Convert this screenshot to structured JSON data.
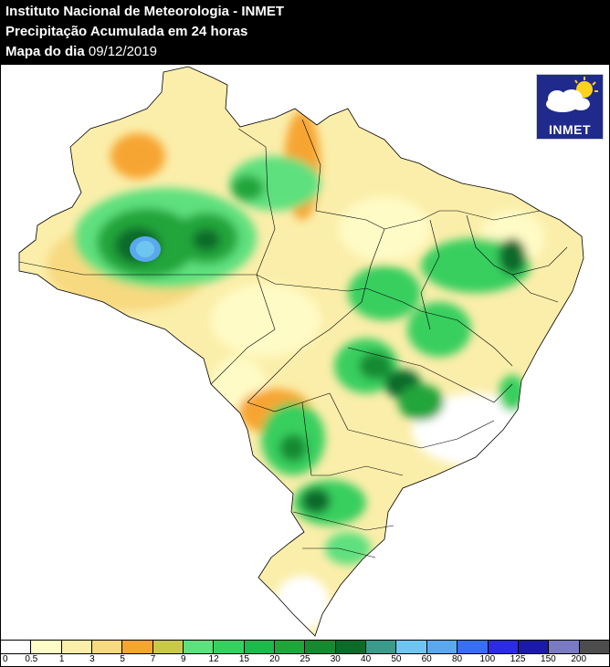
{
  "header": {
    "line1": "Instituto Nacional de Meteorologia - INMET",
    "line2": "Precipitação Acumulada em 24 horas",
    "line3_label": "Mapa do dia",
    "line3_date": "09/12/2019"
  },
  "logo": {
    "text": "INMET",
    "icon": "cloud-sun-logo-icon"
  },
  "map": {
    "icon": "brazil-precipitation-map"
  },
  "legend": {
    "labels": [
      "0",
      "0.5",
      "1",
      "3",
      "5",
      "7",
      "9",
      "12",
      "15",
      "20",
      "25",
      "30",
      "40",
      "50",
      "60",
      "80",
      "100",
      "125",
      "150",
      "200"
    ],
    "colors": [
      "#ffffff",
      "#fffbc6",
      "#fbeeaa",
      "#f7d980",
      "#f7a531",
      "#c8c94a",
      "#5ee07e",
      "#37cf5f",
      "#1fb84b",
      "#20a53a",
      "#178a30",
      "#0d6b2a",
      "#3a9b8a",
      "#6ec6f0",
      "#5aa9ef",
      "#3a6ef0",
      "#2b2be0",
      "#1a1aa6",
      "#7a7ac2",
      "#4d4d4d"
    ]
  }
}
